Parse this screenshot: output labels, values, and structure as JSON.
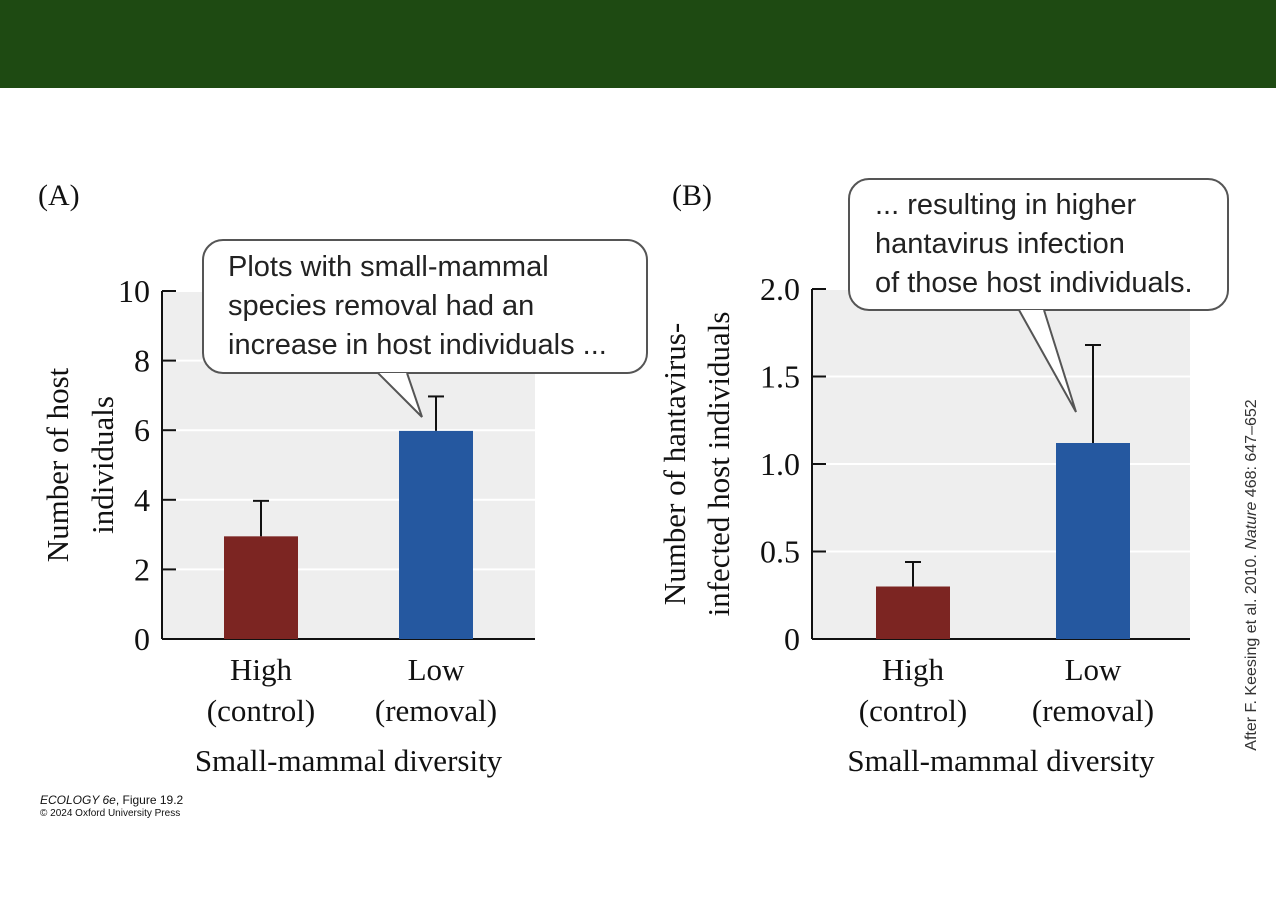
{
  "header": {
    "bar_color": "#1e4a12"
  },
  "chart_data": [
    {
      "type": "bar",
      "panel_label": "(A)",
      "categories": [
        [
          "High",
          "(control)"
        ],
        [
          "Low",
          "(removal)"
        ]
      ],
      "values": [
        2.95,
        5.98
      ],
      "error_upper": [
        3.97,
        6.97
      ],
      "colors": [
        "#7c2522",
        "#2558a0"
      ],
      "ylim": [
        0,
        10
      ],
      "yticks": [
        0,
        2,
        4,
        6,
        8,
        10
      ],
      "ytick_labels": [
        "0",
        "2",
        "4",
        "6",
        "8",
        "10"
      ],
      "ylabel": [
        "Number of host",
        "individuals"
      ],
      "xlabel": "Small-mammal diversity",
      "grid": true,
      "callout": [
        "Plots with small-mammal",
        "species removal had an",
        "increase in host individuals ..."
      ]
    },
    {
      "type": "bar",
      "panel_label": "(B)",
      "categories": [
        [
          "High",
          "(control)"
        ],
        [
          "Low",
          "(removal)"
        ]
      ],
      "values": [
        0.3,
        1.12
      ],
      "error_upper": [
        0.44,
        1.68
      ],
      "colors": [
        "#7c2522",
        "#2558a0"
      ],
      "ylim": [
        0,
        2.0
      ],
      "yticks": [
        0,
        0.5,
        1.0,
        1.5,
        2.0
      ],
      "ytick_labels": [
        "0",
        "0.5",
        "1.0",
        "1.5",
        "2.0"
      ],
      "ylabel": [
        "Number of hantavirus-",
        "infected host individuals"
      ],
      "xlabel": "Small-mammal diversity",
      "grid": true,
      "callout": [
        "... resulting in higher",
        "hantavirus infection",
        "of those host individuals."
      ]
    }
  ],
  "footer": {
    "book": "ECOLOGY 6e",
    "figure": ", Figure 19.2",
    "copyright": "© 2024 Oxford University Press"
  },
  "credit": {
    "before": "After F. Keesing et al. 2010. ",
    "journal": "Nature",
    "after": " 468: 647–652"
  }
}
